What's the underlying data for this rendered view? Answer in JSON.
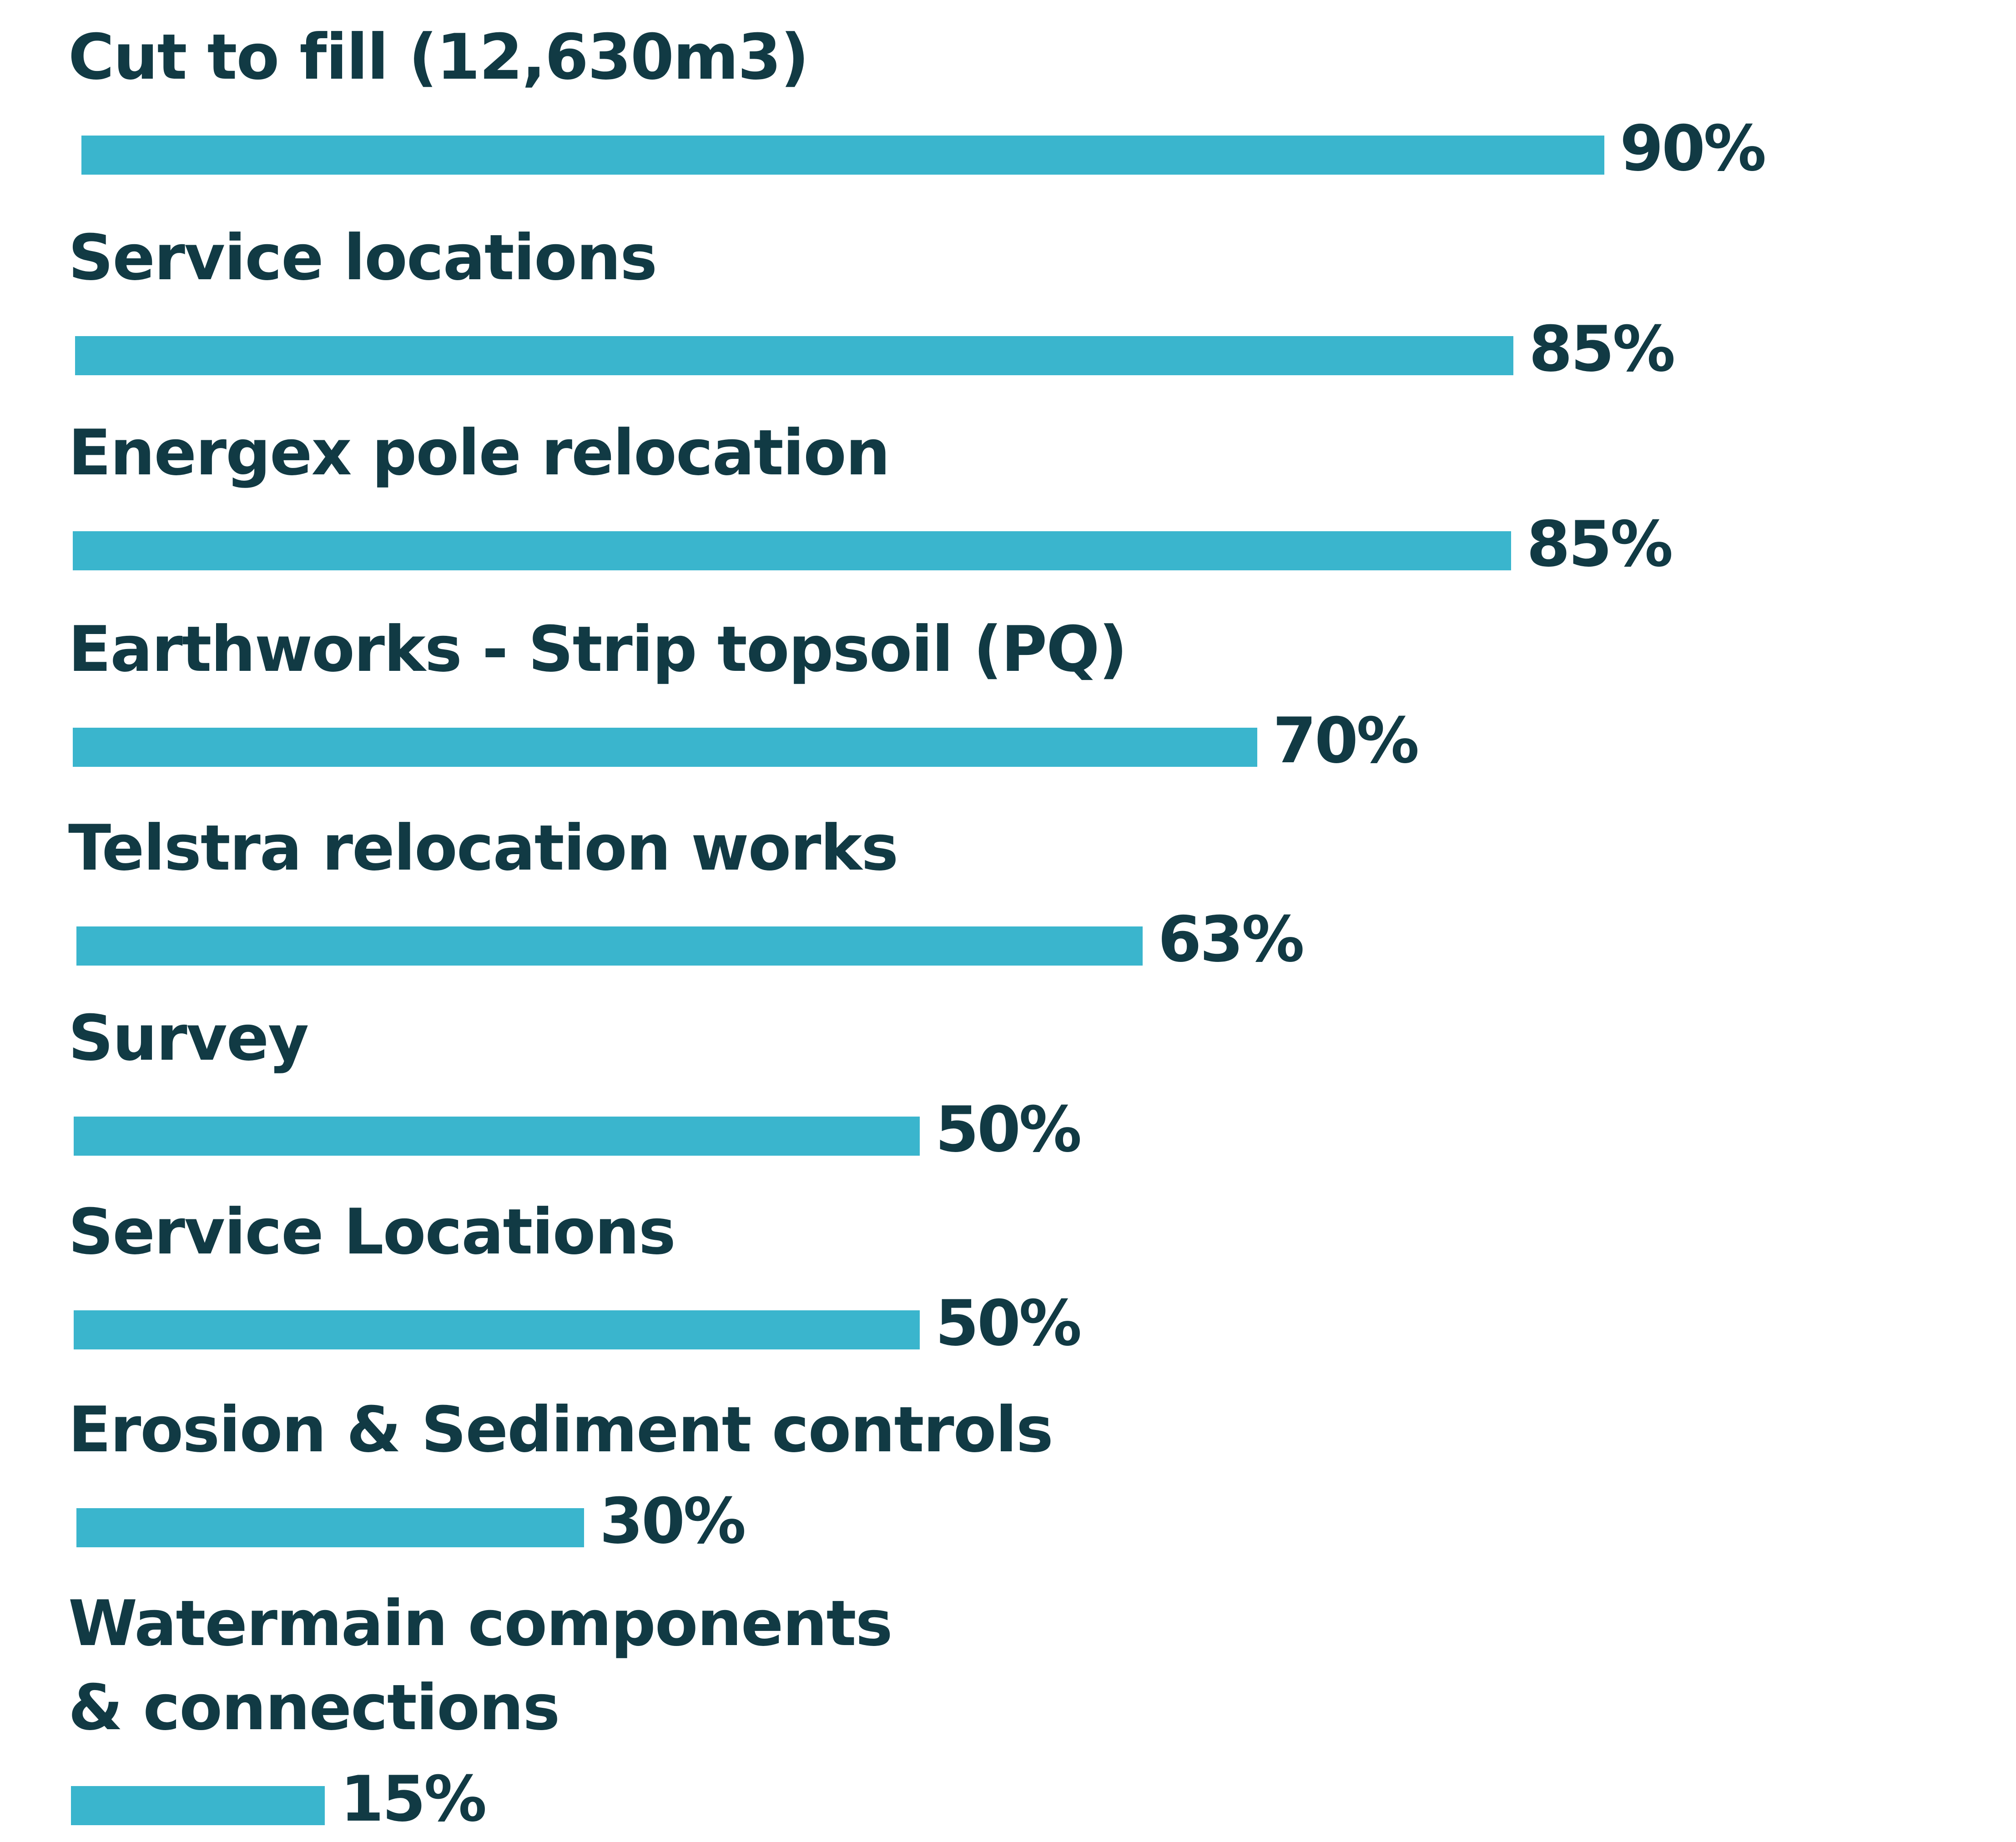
{
  "chart_data": {
    "type": "bar",
    "orientation": "horizontal",
    "title": "",
    "xlabel": "",
    "ylabel": "",
    "xlim": [
      0,
      100
    ],
    "grid": false,
    "categories": [
      "Cut to fill (12,630m3)",
      "Service locations",
      "Energex pole relocation",
      "Earthworks - Strip topsoil (PQ)",
      "Telstra relocation works",
      "Survey",
      "Service Locations",
      "Erosion & Sediment controls",
      "Watermain components\n& connections"
    ],
    "values": [
      90,
      85,
      85,
      70,
      63,
      50,
      50,
      30,
      15
    ],
    "value_labels": [
      "90%",
      "85%",
      "85%",
      "70%",
      "63%",
      "50%",
      "50%",
      "30%",
      "15%"
    ],
    "colors": {
      "bar": "#3ab5cd",
      "text": "#113a44"
    }
  }
}
